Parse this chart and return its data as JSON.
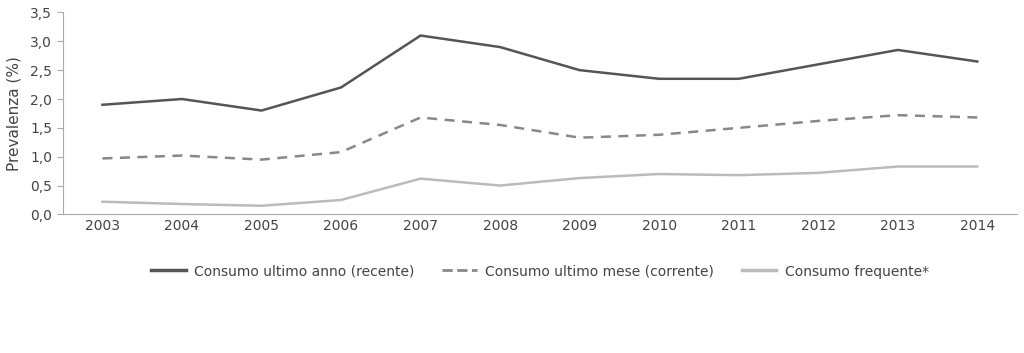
{
  "years": [
    2003,
    2004,
    2005,
    2006,
    2007,
    2008,
    2009,
    2010,
    2011,
    2012,
    2013,
    2014
  ],
  "consumo_anno": [
    1.9,
    2.0,
    1.8,
    2.2,
    3.1,
    2.9,
    2.5,
    2.35,
    2.35,
    2.6,
    2.85,
    2.65
  ],
  "consumo_mese": [
    0.97,
    1.02,
    0.95,
    1.08,
    1.68,
    1.55,
    1.33,
    1.38,
    1.5,
    1.62,
    1.72,
    1.68
  ],
  "consumo_frequente": [
    0.22,
    0.18,
    0.15,
    0.25,
    0.62,
    0.5,
    0.63,
    0.7,
    0.68,
    0.72,
    0.83,
    0.83
  ],
  "color_anno": "#555555",
  "color_mese": "#888888",
  "color_frequente": "#bbbbbb",
  "ylabel": "Prevalenza (%)",
  "ylim": [
    0,
    3.5
  ],
  "yticks": [
    0.0,
    0.5,
    1.0,
    1.5,
    2.0,
    2.5,
    3.0,
    3.5
  ],
  "ytick_labels": [
    "0,0",
    "0,5",
    "1,0",
    "1,5",
    "2,0",
    "2,5",
    "3,0",
    "3,5"
  ],
  "legend_anno": "Consumo ultimo anno (recente)",
  "legend_mese": "Consumo ultimo mese (corrente)",
  "legend_frequente": "Consumo frequente*",
  "spine_color": "#aaaaaa",
  "bg_color": "#ffffff"
}
